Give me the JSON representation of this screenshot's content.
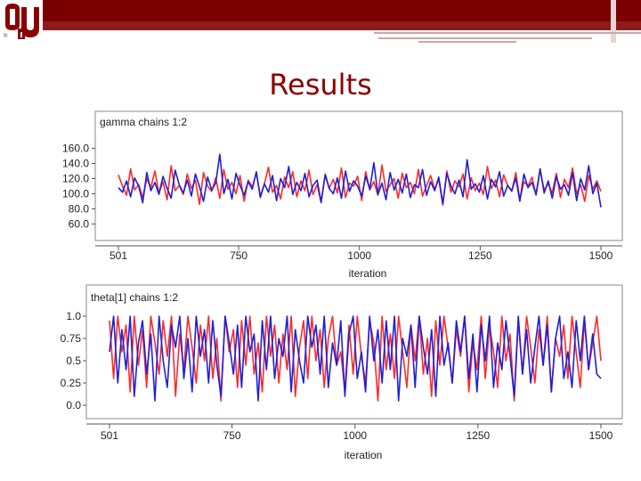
{
  "slide": {
    "title": "Results",
    "brand_color": "#7a0000"
  },
  "chart_data": [
    {
      "type": "line",
      "title": "gamma chains 1:2",
      "xlabel": "iteration",
      "ylabel": "",
      "xlim": [
        501,
        1500
      ],
      "ylim": [
        50,
        170
      ],
      "xticks": [
        501,
        750,
        1000,
        1250,
        1500
      ],
      "xtick_labels": [
        "501",
        "750",
        "1000",
        "1250",
        "1500"
      ],
      "yticks": [
        60,
        80,
        100,
        120,
        140,
        160
      ],
      "ytick_labels": [
        "60.0",
        "80.0",
        "100.0",
        "120.0",
        "140.0",
        "160.0"
      ],
      "series": [
        {
          "color": "#ff2a2a",
          "x_start": 501,
          "x_end": 1500,
          "values": [
            125,
            110,
            98,
            133,
            105,
            112,
            95,
            120,
            108,
            130,
            101,
            116,
            92,
            137,
            104,
            111,
            99,
            126,
            107,
            118,
            86,
            128,
            110,
            103,
            121,
            94,
            132,
            106,
            115,
            100,
            124,
            90,
            118,
            109,
            127,
            97,
            113,
            135,
            102,
            111,
            93,
            122,
            108,
            129,
            96,
            117,
            104,
            131,
            99,
            112,
            88,
            126,
            107,
            119,
            101,
            134,
            95,
            114,
            110,
            123,
            91,
            129,
            105,
            116,
            98,
            138,
            103,
            112,
            120,
            94,
            127,
            108,
            115,
            100,
            132,
            97,
            111,
            124,
            106,
            119,
            85,
            130,
            102,
            117,
            109,
            126,
            93,
            121,
            104,
            114,
            99,
            136,
            107,
            118,
            96,
            125,
            111,
            103,
            128,
            92,
            116,
            110,
            122,
            98,
            131,
            105,
            113,
            101,
            127,
            95,
            119,
            108,
            134,
            100,
            112,
            90,
            124,
            106,
            117,
            103
          ],
          "name": "",
          "legend": false
        },
        {
          "color": "#1f1fd8",
          "x_start": 501,
          "x_end": 1500,
          "values": [
            108,
            102,
            117,
            96,
            121,
            110,
            88,
            128,
            104,
            115,
            99,
            123,
            107,
            94,
            131,
            112,
            101,
            118,
            97,
            126,
            109,
            90,
            122,
            105,
            114,
            152,
            100,
            119,
            93,
            127,
            111,
            98,
            116,
            106,
            129,
            95,
            113,
            102,
            124,
            91,
            120,
            108,
            136,
            99,
            115,
            104,
            127,
            96,
            111,
            118,
            89,
            125,
            107,
            100,
            121,
            94,
            130,
            103,
            117,
            110,
            97,
            123,
            106,
            141,
            99,
            114,
            92,
            128,
            105,
            119,
            101,
            126,
            95,
            112,
            108,
            132,
            98,
            116,
            104,
            122,
            87,
            127,
            110,
            100,
            118,
            96,
            145,
            106,
            113,
            102,
            124,
            93,
            119,
            109,
            129,
            97,
            111,
            104,
            121,
            90,
            126,
            108,
            115,
            99,
            133,
            101,
            117,
            94,
            123,
            106,
            112,
            98,
            128,
            91,
            120,
            105,
            137,
            100,
            114,
            82
          ],
          "name": "",
          "legend": false
        }
      ]
    },
    {
      "type": "line",
      "title": "theta[1] chains 1:2",
      "xlabel": "iteration",
      "ylabel": "",
      "xlim": [
        501,
        1500
      ],
      "ylim": [
        -0.05,
        1.0
      ],
      "xticks": [
        501,
        750,
        1000,
        1250,
        1500
      ],
      "xtick_labels": [
        "501",
        "750",
        "1000",
        "1250",
        "1500"
      ],
      "yticks": [
        0.0,
        0.25,
        0.5,
        0.75,
        1.0
      ],
      "ytick_labels": [
        "0.0",
        "0.25",
        "0.5",
        "0.75",
        "1.0"
      ],
      "series": [
        {
          "color": "#ff2a2a",
          "x_start": 501,
          "x_end": 1500,
          "values": [
            0.95,
            0.3,
            1.0,
            0.6,
            0.9,
            0.15,
            1.0,
            0.45,
            0.85,
            0.2,
            1.0,
            0.7,
            0.35,
            0.95,
            0.55,
            1.0,
            0.1,
            0.8,
            0.4,
            1.0,
            0.65,
            0.25,
            0.9,
            0.5,
            1.0,
            0.3,
            0.75,
            0.05,
            1.0,
            0.6,
            0.85,
            0.2,
            0.95,
            0.45,
            1.0,
            0.35,
            0.7,
            0.15,
            1.0,
            0.55,
            0.9,
            0.25,
            0.8,
            0.4,
            1.0,
            0.1,
            0.65,
            0.95,
            0.3,
            1.0,
            0.5,
            0.85,
            0.2,
            0.75,
            1.0,
            0.45,
            0.6,
            0.15,
            0.9,
            0.35,
            1.0,
            0.55,
            0.25,
            0.95,
            0.7,
            0.05,
            1.0,
            0.4,
            0.8,
            0.3,
            1.0,
            0.6,
            0.2,
            0.9,
            0.5,
            1.0,
            0.35,
            0.75,
            0.1,
            0.95,
            0.45,
            1.0,
            0.65,
            0.25,
            0.85,
            0.55,
            1.0,
            0.15,
            0.7,
            0.4,
            1.0,
            0.3,
            0.9,
            0.6,
            0.2,
            1.0,
            0.5,
            0.8,
            0.05,
            0.95,
            0.35,
            1.0,
            0.65,
            0.25,
            0.85,
            0.45,
            1.0,
            0.15,
            0.75,
            0.55,
            0.9,
            0.3,
            1.0,
            0.6,
            0.2,
            0.95,
            0.4,
            0.7,
            1.0,
            0.5
          ],
          "name": "",
          "legend": false
        },
        {
          "color": "#1f1fd8",
          "x_start": 501,
          "x_end": 1500,
          "values": [
            0.6,
            1.0,
            0.25,
            0.85,
            0.4,
            1.0,
            0.1,
            0.7,
            0.95,
            0.35,
            0.8,
            0.05,
            1.0,
            0.5,
            0.2,
            0.9,
            0.65,
            1.0,
            0.3,
            0.75,
            0.15,
            1.0,
            0.55,
            0.85,
            0.25,
            0.95,
            0.45,
            0.1,
            1.0,
            0.7,
            0.35,
            0.9,
            0.2,
            1.0,
            0.6,
            0.8,
            0.05,
            0.95,
            0.4,
            1.0,
            0.3,
            0.75,
            0.55,
            1.0,
            0.15,
            0.85,
            0.5,
            0.25,
            1.0,
            0.65,
            0.9,
            0.35,
            1.0,
            0.2,
            0.7,
            0.45,
            0.95,
            0.1,
            0.8,
            1.0,
            0.3,
            0.6,
            0.15,
            1.0,
            0.5,
            0.85,
            0.25,
            0.95,
            0.4,
            1.0,
            0.05,
            0.75,
            0.55,
            0.9,
            0.2,
            1.0,
            0.65,
            0.35,
            0.85,
            0.1,
            1.0,
            0.45,
            0.7,
            0.25,
            0.95,
            0.6,
            1.0,
            0.3,
            0.8,
            0.15,
            0.9,
            0.5,
            1.0,
            0.2,
            0.7,
            0.4,
            0.95,
            0.55,
            0.1,
            1.0,
            0.35,
            0.85,
            0.25,
            0.65,
            1.0,
            0.45,
            0.9,
            0.15,
            0.75,
            1.0,
            0.3,
            0.6,
            0.2,
            0.95,
            0.5,
            1.0,
            0.4,
            0.8,
            0.35,
            0.3
          ],
          "name": "",
          "legend": false
        }
      ]
    }
  ]
}
